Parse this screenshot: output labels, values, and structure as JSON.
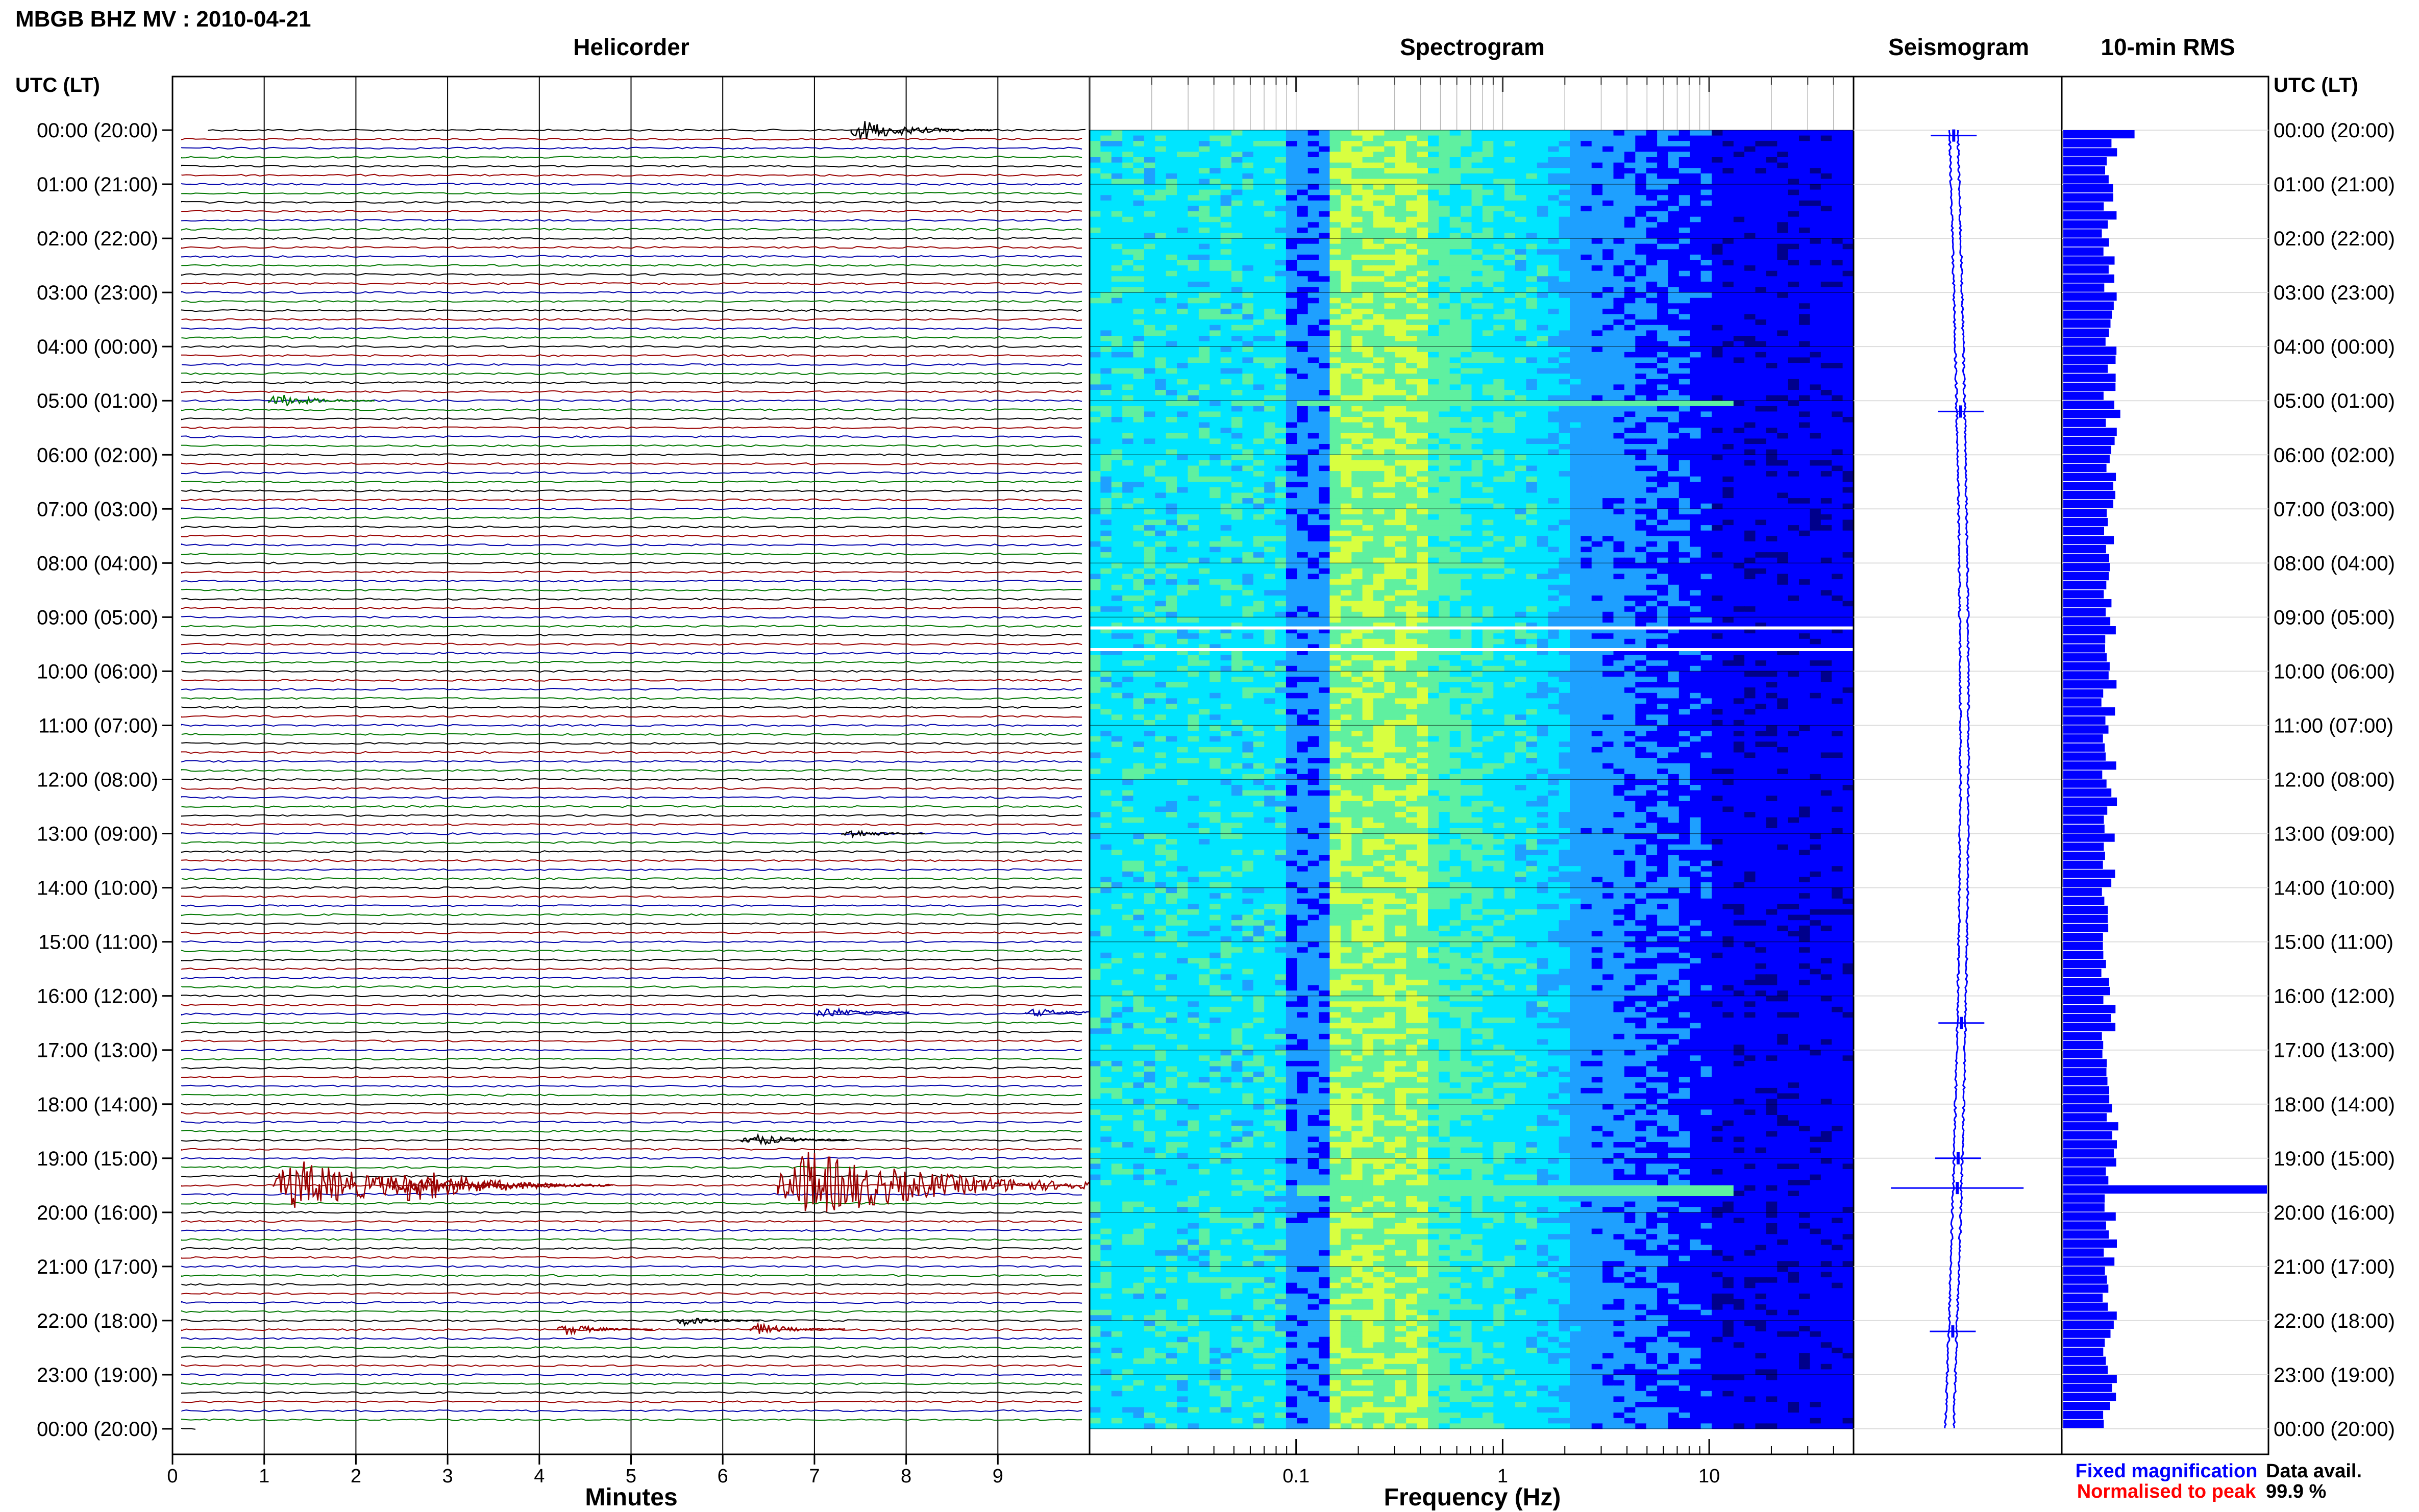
{
  "header": {
    "title": "MBGB BHZ MV : 2010-04-21",
    "left_axis_label": "UTC (LT)",
    "right_axis_label": "UTC (LT)"
  },
  "panels": {
    "helicorder": "Helicorder",
    "spectrogram": "Spectrogram",
    "seismogram": "Seismogram",
    "rms": "10-min RMS"
  },
  "time_labels": [
    "00:00 (20:00)",
    "01:00 (21:00)",
    "02:00 (22:00)",
    "03:00 (23:00)",
    "04:00 (00:00)",
    "05:00 (01:00)",
    "06:00 (02:00)",
    "07:00 (03:00)",
    "08:00 (04:00)",
    "09:00 (05:00)",
    "10:00 (06:00)",
    "11:00 (07:00)",
    "12:00 (08:00)",
    "13:00 (09:00)",
    "14:00 (10:00)",
    "15:00 (11:00)",
    "16:00 (12:00)",
    "17:00 (13:00)",
    "18:00 (14:00)",
    "19:00 (15:00)",
    "20:00 (16:00)",
    "21:00 (17:00)",
    "22:00 (18:00)",
    "23:00 (19:00)",
    "00:00 (20:00)"
  ],
  "legend": {
    "fixed": "Fixed magnification",
    "normalised": "Normalised to peak",
    "fixed_color": "#0000ff",
    "normalised_color": "#ff0000",
    "data_avail_label": "Data avail.",
    "data_avail_value": "99.9 %"
  },
  "chart_data": [
    {
      "type": "line",
      "panel": "helicorder",
      "xlabel": "Minutes",
      "xlim": [
        0,
        10
      ],
      "x_ticks": [
        0,
        1,
        2,
        3,
        4,
        5,
        6,
        7,
        8,
        9
      ],
      "ylim_hours": [
        0,
        24
      ],
      "rows_per_hour": 6,
      "trace_colors": [
        "#000000",
        "#990000",
        "#0000aa",
        "#007700"
      ],
      "events": [
        {
          "hour": 0.0,
          "minute": 7.4,
          "amp": 0.9,
          "color": "#000000"
        },
        {
          "hour": 5.0,
          "minute": 1.05,
          "amp": 0.6,
          "color": "#007700"
        },
        {
          "hour": 13.0,
          "minute": 7.3,
          "amp": 0.4,
          "color": "#000000"
        },
        {
          "hour": 16.3,
          "minute": 7.0,
          "amp": 0.5,
          "color": "#0000aa"
        },
        {
          "hour": 16.3,
          "minute": 9.3,
          "amp": 0.4,
          "color": "#0000aa"
        },
        {
          "hour": 18.66,
          "minute": 6.2,
          "amp": 0.6,
          "color": "#000000"
        },
        {
          "hour": 19.5,
          "minute": 1.1,
          "amp": 2.2,
          "color": "#990000"
        },
        {
          "hour": 19.5,
          "minute": 2.4,
          "amp": 1.6,
          "color": "#990000"
        },
        {
          "hour": 19.5,
          "minute": 6.6,
          "amp": 3.0,
          "color": "#990000"
        },
        {
          "hour": 22.16,
          "minute": 4.2,
          "amp": 0.5,
          "color": "#990000"
        },
        {
          "hour": 22.16,
          "minute": 6.3,
          "amp": 0.5,
          "color": "#990000"
        },
        {
          "hour": 22.0,
          "minute": 5.5,
          "amp": 0.4,
          "color": "#000000"
        }
      ]
    },
    {
      "type": "heatmap",
      "panel": "spectrogram",
      "xlabel": "Frequency (Hz)",
      "xscale": "log",
      "xlim": [
        0.01,
        50
      ],
      "x_tick_labels": [
        "0.1",
        "1",
        "10"
      ],
      "x_tick_values": [
        0.1,
        1,
        10
      ],
      "data_gaps_hours": [
        9.2,
        9.6
      ],
      "event_hours": [
        5.0,
        19.55
      ],
      "colormap": [
        "#00008b",
        "#0000ff",
        "#1ea0ff",
        "#00e5ff",
        "#5ff0a0",
        "#d8ff40"
      ]
    },
    {
      "type": "line",
      "panel": "seismogram",
      "ylim_hours": [
        0,
        24
      ],
      "color": "#0000ff",
      "spike_hours": [
        0.1,
        5.2,
        16.5,
        19.0,
        19.55,
        22.2
      ]
    },
    {
      "type": "bar",
      "panel": "rms",
      "orientation": "horizontal",
      "interval_minutes": 10,
      "color": "#0000ff",
      "baseline": 0.22,
      "peaks": [
        {
          "hour": 0.0,
          "value": 0.35
        },
        {
          "hour": 5.1,
          "value": 0.28
        },
        {
          "hour": 18.4,
          "value": 0.27
        },
        {
          "hour": 19.0,
          "value": 0.26
        },
        {
          "hour": 19.5,
          "value": 1.0
        }
      ]
    }
  ]
}
